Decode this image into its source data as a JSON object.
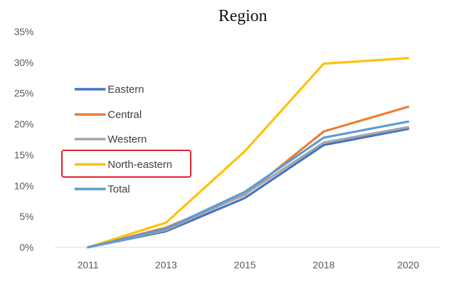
{
  "chart_data": {
    "type": "line",
    "title": "Region",
    "xlabel": "",
    "ylabel": "",
    "categories": [
      "2011",
      "2013",
      "2015",
      "2018",
      "2020"
    ],
    "ylim": [
      0,
      35
    ],
    "yticks": [
      "0%",
      "5%",
      "10%",
      "15%",
      "20%",
      "25%",
      "30%",
      "35%"
    ],
    "y_unit": "percent",
    "grid": false,
    "legend_position": "left",
    "highlighted_series": "North-eastern",
    "highlight_color": "#e0202a",
    "series": [
      {
        "name": "Eastern",
        "color": "#4472c4",
        "values": [
          0,
          2.6,
          8.0,
          16.6,
          19.2
        ]
      },
      {
        "name": "Central",
        "color": "#ed7d31",
        "values": [
          0,
          3.2,
          8.5,
          18.8,
          22.8
        ]
      },
      {
        "name": "Western",
        "color": "#a5a5a5",
        "values": [
          0,
          2.8,
          8.6,
          17.0,
          19.5
        ]
      },
      {
        "name": "North-eastern",
        "color": "#ffc000",
        "values": [
          0,
          4.0,
          15.6,
          29.8,
          30.7
        ]
      },
      {
        "name": "Total",
        "color": "#5b9bd5",
        "values": [
          0,
          3.0,
          9.0,
          17.8,
          20.4
        ]
      }
    ]
  }
}
